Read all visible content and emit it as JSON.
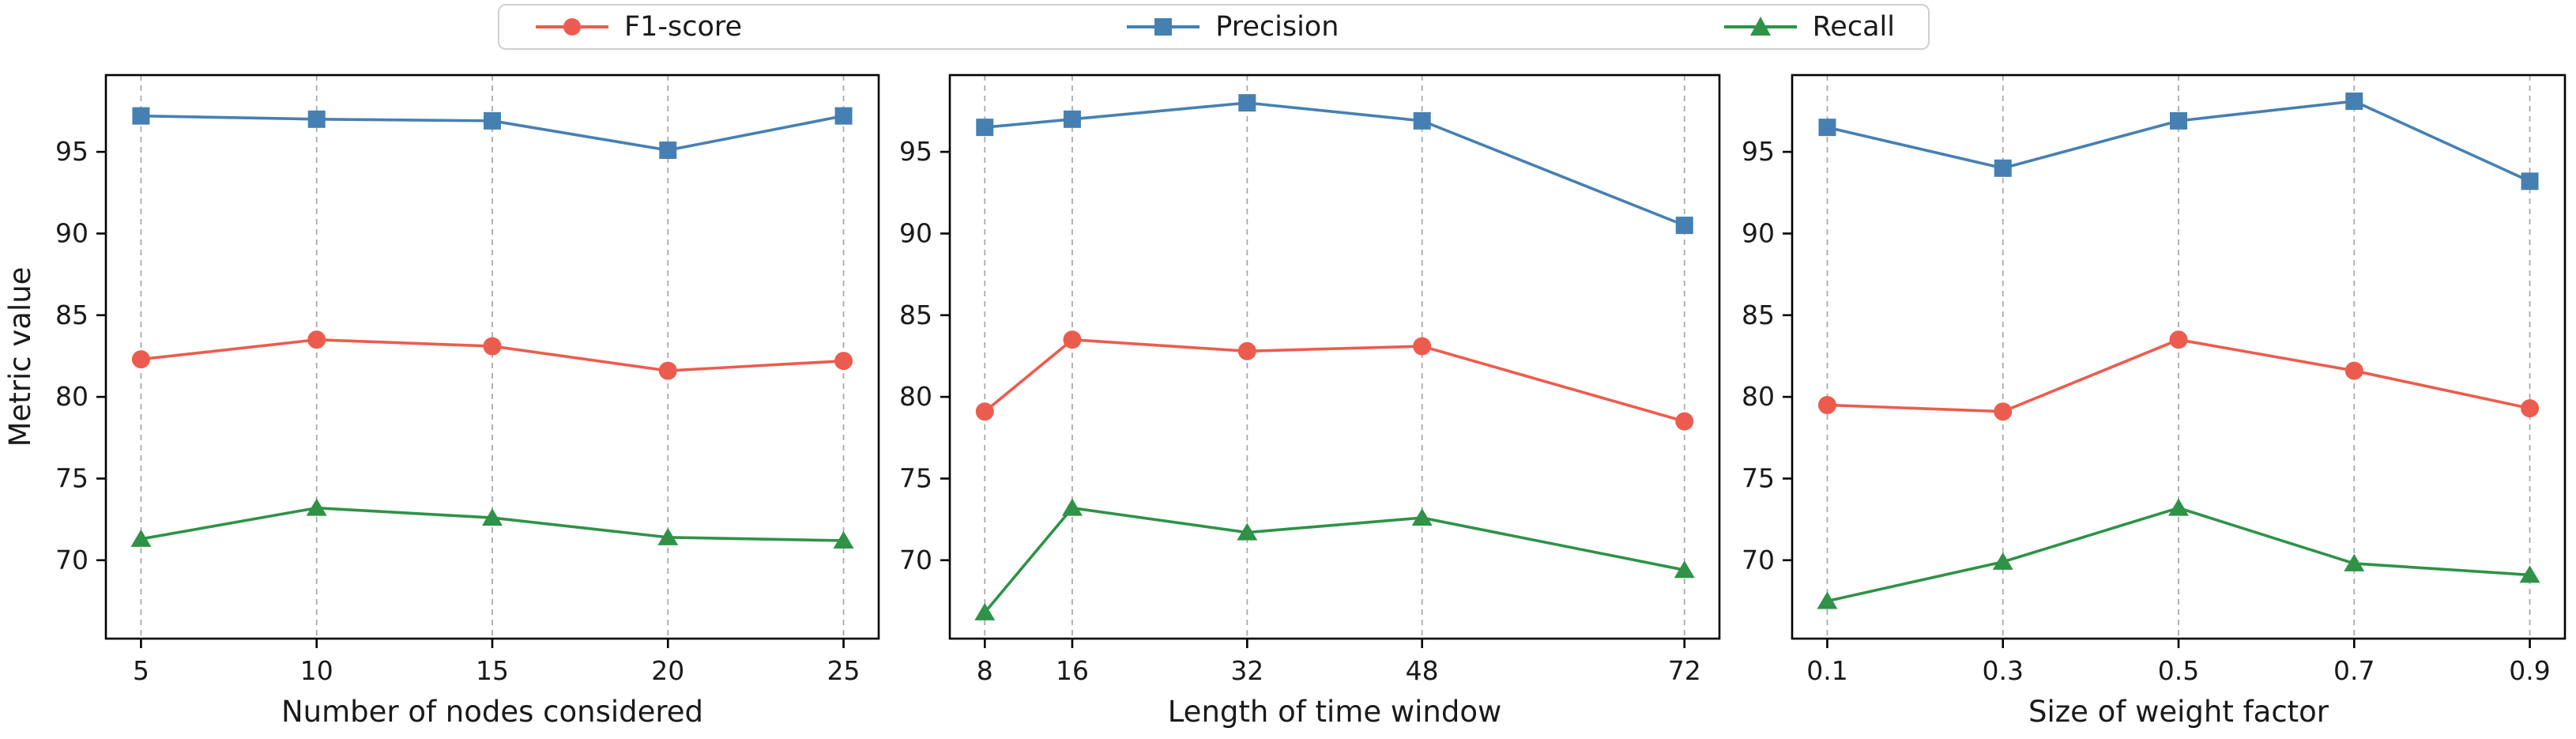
{
  "figure_title": "",
  "legend": {
    "items": [
      {
        "label": "F1-score",
        "marker": "circle",
        "color": "#ec5c4e"
      },
      {
        "label": "Precision",
        "marker": "square",
        "color": "#4680b2"
      },
      {
        "label": "Recall",
        "marker": "triangle",
        "color": "#2f9247"
      }
    ]
  },
  "axis_style": {
    "text_color": "#1a1a1a",
    "spine_color": "#000000",
    "gridline_color": "#aaaaaa",
    "grid": "vertical-dashed"
  },
  "chart_data": [
    {
      "type": "line",
      "xlabel": "Number of nodes considered",
      "ylabel": "Metric value",
      "x": [
        5,
        10,
        15,
        20,
        25
      ],
      "xtick_labels": [
        "5",
        "10",
        "15",
        "20",
        "25"
      ],
      "yticks": [
        70,
        75,
        80,
        85,
        90,
        95
      ],
      "ylim": [
        65.2,
        99.7
      ],
      "legend_position": "top-center-outside",
      "series": [
        {
          "name": "F1-score",
          "marker": "circle",
          "color": "#ec5c4e",
          "values": [
            82.3,
            83.5,
            83.1,
            81.6,
            82.2
          ]
        },
        {
          "name": "Precision",
          "marker": "square",
          "color": "#4680b2",
          "values": [
            97.2,
            97.0,
            96.9,
            95.1,
            97.2
          ]
        },
        {
          "name": "Recall",
          "marker": "triangle",
          "color": "#2f9247",
          "values": [
            71.3,
            73.2,
            72.6,
            71.4,
            71.2
          ]
        }
      ]
    },
    {
      "type": "line",
      "xlabel": "Length of time window",
      "ylabel": "",
      "x": [
        8,
        16,
        32,
        48,
        72
      ],
      "xtick_labels": [
        "8",
        "16",
        "32",
        "48",
        "72"
      ],
      "yticks": [
        70,
        75,
        80,
        85,
        90,
        95
      ],
      "ylim": [
        65.2,
        99.7
      ],
      "legend_position": "top-center-outside",
      "series": [
        {
          "name": "F1-score",
          "marker": "circle",
          "color": "#ec5c4e",
          "values": [
            79.1,
            83.5,
            82.8,
            83.1,
            78.5
          ]
        },
        {
          "name": "Precision",
          "marker": "square",
          "color": "#4680b2",
          "values": [
            96.5,
            97.0,
            98.0,
            96.9,
            90.5
          ]
        },
        {
          "name": "Recall",
          "marker": "triangle",
          "color": "#2f9247",
          "values": [
            66.8,
            73.2,
            71.7,
            72.6,
            69.4
          ]
        }
      ]
    },
    {
      "type": "line",
      "xlabel": "Size of weight factor",
      "ylabel": "",
      "x": [
        0.1,
        0.3,
        0.5,
        0.7,
        0.9
      ],
      "xtick_labels": [
        "0.1",
        "0.3",
        "0.5",
        "0.7",
        "0.9"
      ],
      "yticks": [
        70,
        75,
        80,
        85,
        90,
        95
      ],
      "ylim": [
        65.2,
        99.7
      ],
      "legend_position": "top-center-outside",
      "series": [
        {
          "name": "F1-score",
          "marker": "circle",
          "color": "#ec5c4e",
          "values": [
            79.5,
            79.1,
            83.5,
            81.6,
            79.3
          ]
        },
        {
          "name": "Precision",
          "marker": "square",
          "color": "#4680b2",
          "values": [
            96.5,
            94.0,
            96.9,
            98.1,
            93.2
          ]
        },
        {
          "name": "Recall",
          "marker": "triangle",
          "color": "#2f9247",
          "values": [
            67.5,
            69.9,
            73.2,
            69.8,
            69.1
          ]
        }
      ]
    }
  ]
}
